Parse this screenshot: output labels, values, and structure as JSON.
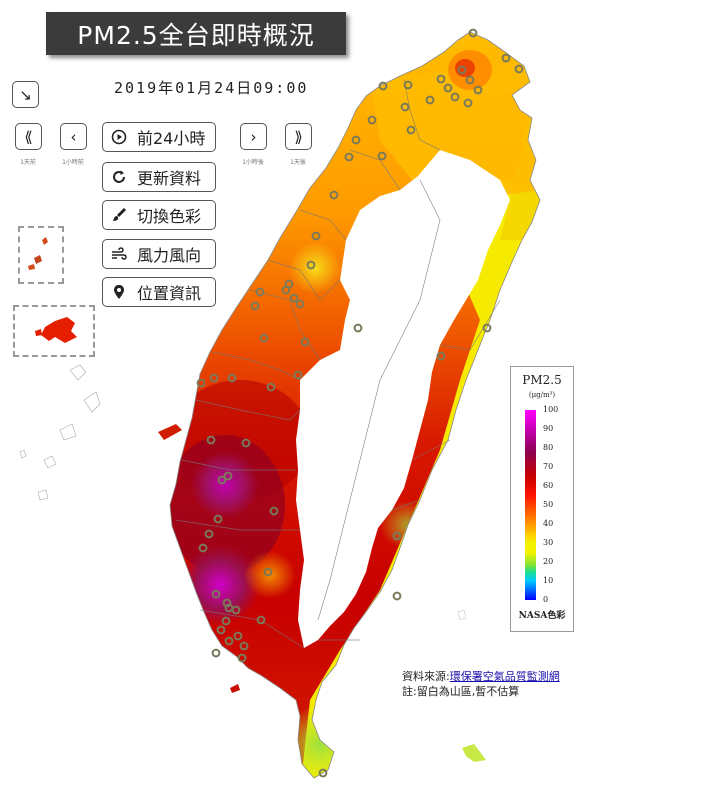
{
  "header": {
    "title": "PM2.5全台即時概況",
    "datetime": "2019年01月24日09:00"
  },
  "controls": {
    "collapse_icon": "arrow-down-right-icon",
    "nav": [
      {
        "id": "back-day",
        "glyph": "⟪",
        "caption": "1天前"
      },
      {
        "id": "back-hour",
        "glyph": "‹",
        "caption": "1小時前"
      },
      {
        "id": "forward-hour",
        "glyph": "›",
        "caption": "1小時後"
      },
      {
        "id": "forward-day",
        "glyph": "⟫",
        "caption": "1天後"
      }
    ],
    "buttons": [
      {
        "id": "play-24h",
        "icon": "play-circle-icon",
        "glyph": "▶",
        "label": "前24小時"
      },
      {
        "id": "refresh",
        "icon": "refresh-icon",
        "glyph": "↻",
        "label": "更新資料"
      },
      {
        "id": "color-switch",
        "icon": "paint-brush-icon",
        "glyph": "✎",
        "label": "切換色彩"
      },
      {
        "id": "wind",
        "icon": "wind-icon",
        "glyph": "≋",
        "label": "風力風向"
      },
      {
        "id": "location",
        "icon": "map-marker-icon",
        "glyph": "⬤",
        "label": "位置資訊"
      }
    ]
  },
  "legend": {
    "title": "PM2.5",
    "unit": "(μg/m³)",
    "ticks": [
      "100",
      "90",
      "80",
      "70",
      "60",
      "50",
      "40",
      "30",
      "20",
      "10",
      "0"
    ],
    "footer": "NASA色彩"
  },
  "source": {
    "prefix": "資料來源:",
    "link": "環保署空氣品質監測網",
    "note": "註:留白為山區,暫不估算"
  },
  "colors": {
    "title_bg": "#3b3b3b",
    "yellow": "#f5f000",
    "orange": "#ffa800",
    "red": "#e61e00",
    "darkred": "#a00000",
    "magenta": "#c000b0",
    "station": "#7a7a5a"
  }
}
